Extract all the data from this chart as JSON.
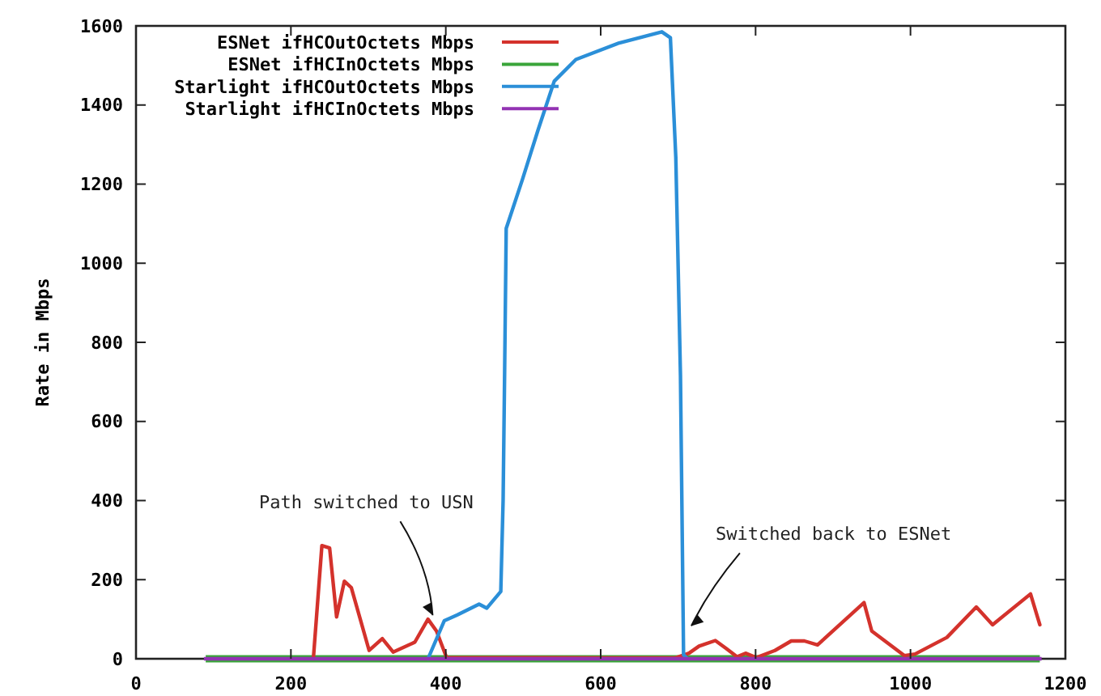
{
  "chart_data": {
    "type": "line",
    "ylabel": "Rate in Mbps",
    "xlim": [
      0,
      1200
    ],
    "ylim": [
      0,
      1600
    ],
    "xticks": [
      0,
      200,
      400,
      600,
      800,
      1000,
      1200
    ],
    "yticks": [
      0,
      200,
      400,
      600,
      800,
      1000,
      1200,
      1400,
      1600
    ],
    "grid": false,
    "legend": "top left",
    "marker": "none",
    "line_style": "solid",
    "series": [
      {
        "name": "ESNet ifHCOutOctets Mbps",
        "color": "#d4322c",
        "x": [
          229,
          240,
          250,
          259,
          269,
          278,
          301,
          318,
          332,
          360,
          377,
          388,
          401,
          696,
          714,
          727,
          748,
          762,
          776,
          787,
          801,
          825,
          846,
          863,
          880,
          940,
          950,
          992,
          1006,
          1047,
          1085,
          1106,
          1155,
          1167
        ],
        "values": [
          0,
          286,
          280,
          106,
          196,
          180,
          21,
          51,
          17,
          42,
          100,
          70,
          3,
          2,
          14,
          32,
          46,
          26,
          5,
          14,
          3,
          21,
          45,
          45,
          35,
          142,
          70,
          8,
          12,
          54,
          131,
          86,
          164,
          86
        ]
      },
      {
        "name": "ESNet ifHCInOctets Mbps",
        "color": "#3aa53a",
        "x": [
          90,
          1167
        ],
        "values": [
          0,
          0
        ]
      },
      {
        "name": "Starlight ifHCOutOctets Mbps",
        "color": "#2b8fd8",
        "x": [
          377,
          398,
          415,
          443,
          453,
          471,
          474,
          476,
          478,
          499,
          519,
          540,
          568,
          624,
          679,
          690,
          697,
          703,
          707,
          712
        ],
        "values": [
          0,
          96,
          111,
          138,
          128,
          170,
          400,
          730,
          1088,
          1212,
          1336,
          1460,
          1515,
          1557,
          1585,
          1570,
          1267,
          717,
          10,
          0
        ]
      },
      {
        "name": "Starlight ifHCInOctets Mbps",
        "color": "#9333b3",
        "x": [
          90,
          1167
        ],
        "values": [
          0,
          0
        ]
      }
    ],
    "annotations": [
      {
        "text": "Path switched to USN",
        "x": 383,
        "y": 110
      },
      {
        "text": "Switched back to ESNet",
        "x": 717,
        "y": 83
      }
    ]
  }
}
